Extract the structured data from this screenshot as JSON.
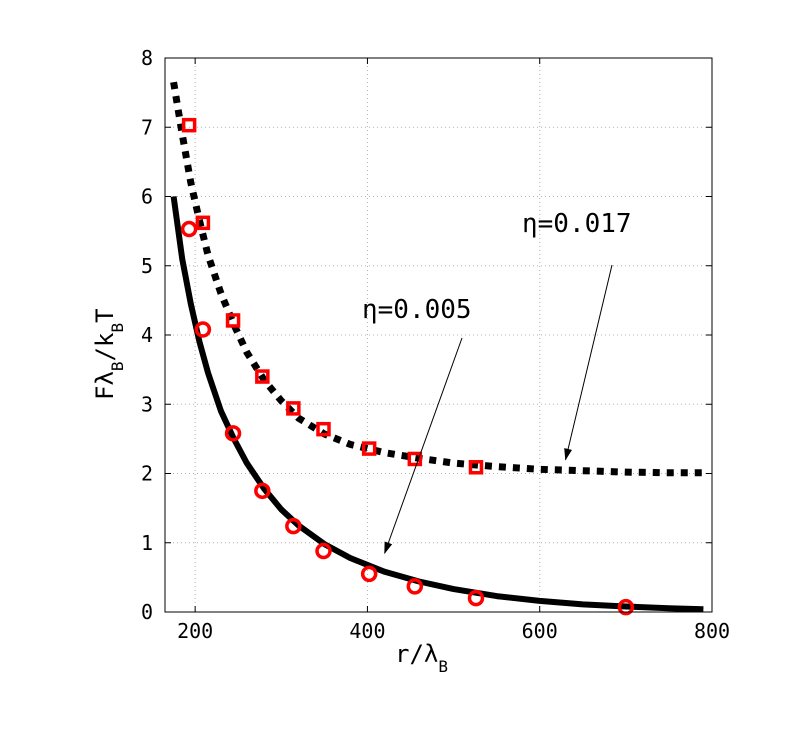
{
  "chart_data": {
    "type": "line",
    "xlim": [
      165,
      800
    ],
    "ylim": [
      0,
      8
    ],
    "grid": true,
    "x_ticks": [
      "200",
      "400",
      "600",
      "800"
    ],
    "y_ticks": [
      "0",
      "1",
      "2",
      "3",
      "4",
      "5",
      "6",
      "7",
      "8"
    ],
    "xlabel": "r/λB",
    "ylabel": "FλB/kBT",
    "xlabel_parts": {
      "main": "r/λ",
      "sub": "B"
    },
    "ylabel_parts": {
      "a": "Fλ",
      "sub1": "B",
      "b": "/k",
      "sub2": "B",
      "c": "T"
    },
    "series": [
      {
        "style": "solid",
        "color": "#000000",
        "x": [
          175,
          185,
          195,
          205,
          215,
          230,
          245,
          260,
          280,
          300,
          320,
          350,
          380,
          420,
          460,
          500,
          550,
          600,
          650,
          700,
          750,
          790
        ],
        "y": [
          6.0,
          5.1,
          4.45,
          3.9,
          3.45,
          2.9,
          2.5,
          2.15,
          1.78,
          1.48,
          1.25,
          0.98,
          0.78,
          0.58,
          0.44,
          0.33,
          0.23,
          0.16,
          0.11,
          0.08,
          0.055,
          0.04
        ]
      },
      {
        "style": "dotted",
        "color": "#000000",
        "x": [
          175,
          185,
          195,
          205,
          215,
          230,
          245,
          260,
          280,
          300,
          320,
          350,
          380,
          420,
          460,
          500,
          550,
          600,
          650,
          700,
          750,
          790
        ],
        "y": [
          7.65,
          6.9,
          6.2,
          5.65,
          5.15,
          4.6,
          4.15,
          3.75,
          3.35,
          3.05,
          2.8,
          2.57,
          2.42,
          2.3,
          2.22,
          2.15,
          2.1,
          2.06,
          2.04,
          2.02,
          2.01,
          2.01
        ]
      },
      {
        "style": "marker-circle",
        "color": "#ff0000",
        "x": [
          193,
          209,
          244,
          278,
          314,
          349,
          402,
          455,
          526,
          700
        ],
        "y": [
          5.53,
          4.08,
          2.58,
          1.75,
          1.24,
          0.88,
          0.55,
          0.37,
          0.2,
          0.07
        ]
      },
      {
        "style": "marker-square",
        "color": "#ff0000",
        "x": [
          193,
          209,
          244,
          278,
          314,
          349,
          402,
          455,
          526
        ],
        "y": [
          7.03,
          5.62,
          4.21,
          3.4,
          2.94,
          2.64,
          2.36,
          2.21,
          2.09
        ]
      }
    ],
    "annotations": [
      {
        "text": "η=0.005",
        "arrow_to": [
          420,
          0.85
        ]
      },
      {
        "text": "η=0.017",
        "arrow_to": [
          630,
          2.2
        ]
      }
    ]
  }
}
